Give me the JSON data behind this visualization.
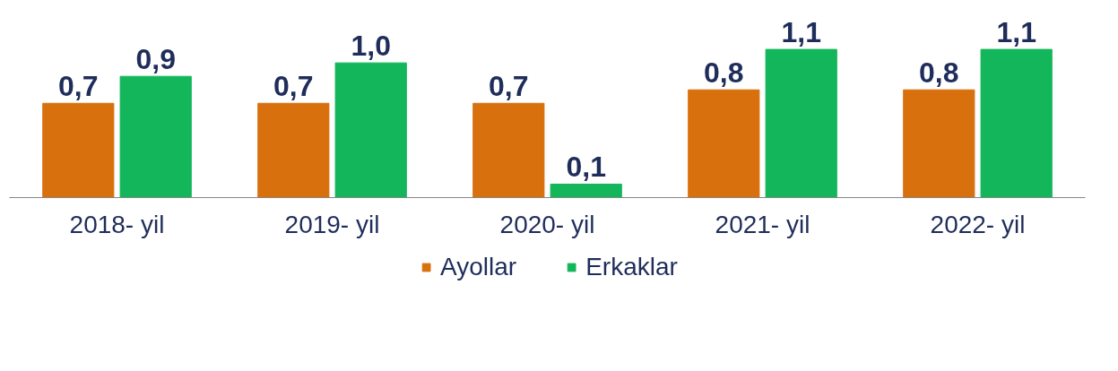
{
  "chart_data": {
    "type": "bar",
    "categories": [
      "2018- yil",
      "2019- yil",
      "2020- yil",
      "2021- yil",
      "2022- yil"
    ],
    "series": [
      {
        "name": "Ayollar",
        "color": "#d9700e",
        "values": [
          0.7,
          0.7,
          0.7,
          0.8,
          0.8
        ],
        "value_labels": [
          "0,7",
          "0,7",
          "0,7",
          "0,8",
          "0,8"
        ]
      },
      {
        "name": "Erkaklar",
        "color": "#13b65a",
        "values": [
          0.9,
          1.0,
          0.1,
          1.1,
          1.1
        ],
        "value_labels": [
          "0,9",
          "1,0",
          "0,1",
          "1,1",
          "1,1"
        ]
      }
    ],
    "legend": "bottom"
  }
}
